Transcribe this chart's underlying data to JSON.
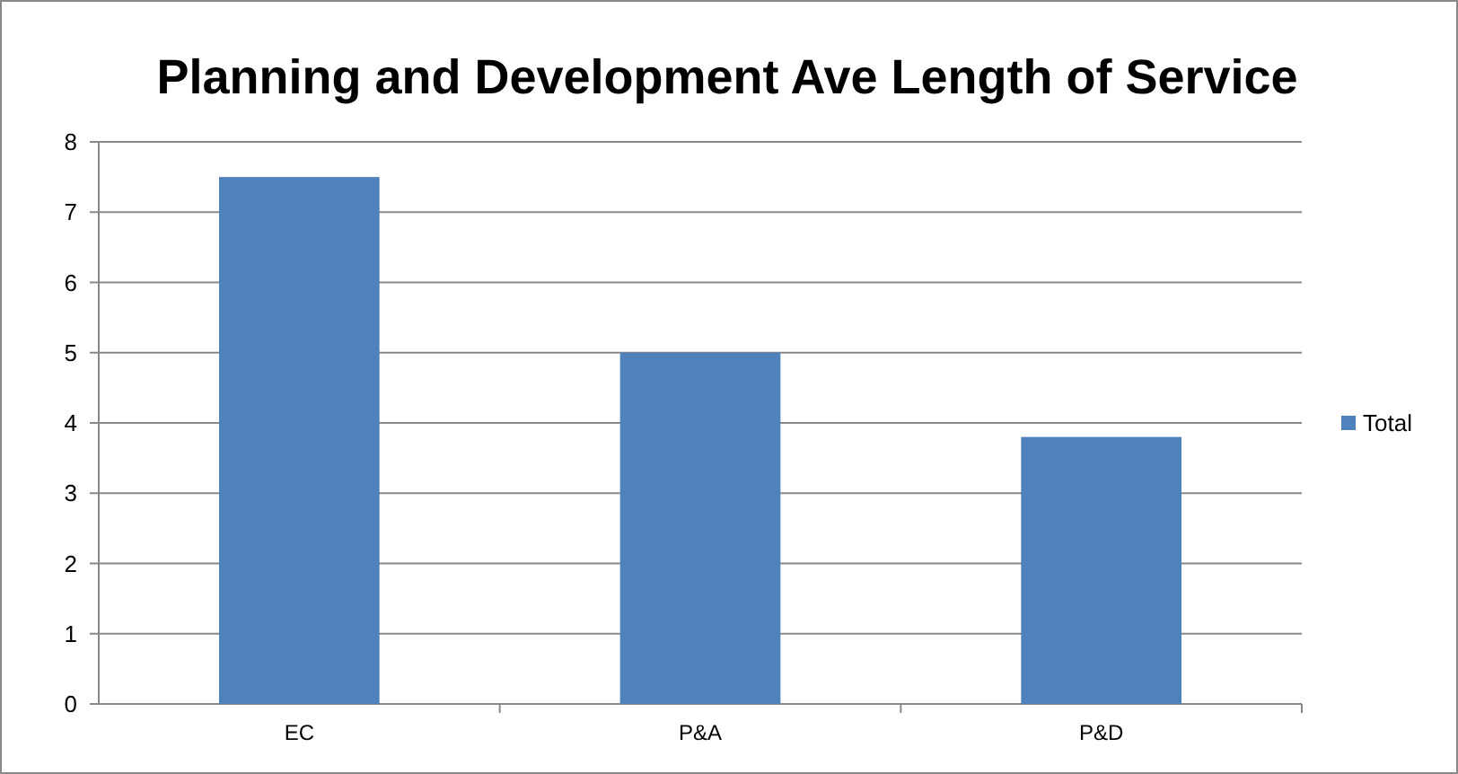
{
  "chart_data": {
    "type": "bar",
    "title": "Planning and Development Ave Length of Service",
    "categories": [
      "EC",
      "P&A",
      "P&D"
    ],
    "series": [
      {
        "name": "Total",
        "color": "#4f81bd",
        "values": [
          7.5,
          5.0,
          3.8
        ]
      }
    ],
    "ylim": [
      0,
      8
    ],
    "yticks": [
      0,
      1,
      2,
      3,
      4,
      5,
      6,
      7,
      8
    ],
    "grid": "y",
    "legend": "right"
  }
}
